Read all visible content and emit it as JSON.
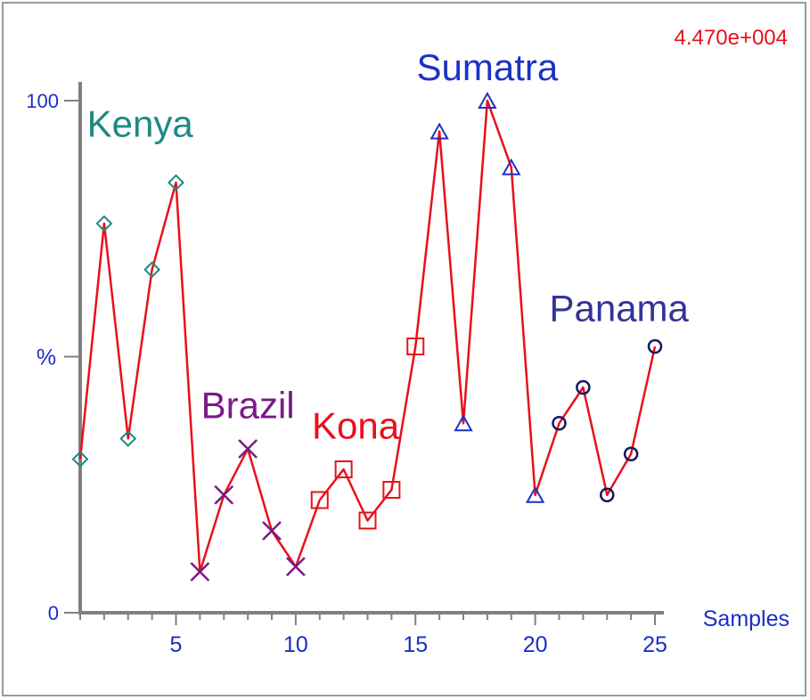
{
  "chart_data": {
    "type": "line",
    "scale_label": "4.470e+004",
    "xlabel": "Samples",
    "ylabel": "%",
    "xlim": [
      1,
      25
    ],
    "ylim": [
      0,
      100
    ],
    "x_ticks": [
      5,
      10,
      15,
      20,
      25
    ],
    "y_ticks": [
      0,
      100
    ],
    "grid": false,
    "line_color": "#e8101c",
    "points": [
      {
        "x": 1,
        "y": 30,
        "group": "Kenya"
      },
      {
        "x": 2,
        "y": 76,
        "group": "Kenya"
      },
      {
        "x": 3,
        "y": 34,
        "group": "Kenya"
      },
      {
        "x": 4,
        "y": 67,
        "group": "Kenya"
      },
      {
        "x": 5,
        "y": 84,
        "group": "Kenya"
      },
      {
        "x": 6,
        "y": 8,
        "group": "Brazil"
      },
      {
        "x": 7,
        "y": 23,
        "group": "Brazil"
      },
      {
        "x": 8,
        "y": 32,
        "group": "Brazil"
      },
      {
        "x": 9,
        "y": 16,
        "group": "Brazil"
      },
      {
        "x": 10,
        "y": 9,
        "group": "Brazil"
      },
      {
        "x": 11,
        "y": 22,
        "group": "Kona"
      },
      {
        "x": 12,
        "y": 28,
        "group": "Kona"
      },
      {
        "x": 13,
        "y": 18,
        "group": "Kona"
      },
      {
        "x": 14,
        "y": 24,
        "group": "Kona"
      },
      {
        "x": 15,
        "y": 52,
        "group": "Kona"
      },
      {
        "x": 16,
        "y": 94,
        "group": "Sumatra"
      },
      {
        "x": 17,
        "y": 37,
        "group": "Sumatra"
      },
      {
        "x": 18,
        "y": 100,
        "group": "Sumatra"
      },
      {
        "x": 19,
        "y": 87,
        "group": "Sumatra"
      },
      {
        "x": 20,
        "y": 23,
        "group": "Sumatra"
      },
      {
        "x": 21,
        "y": 37,
        "group": "Panama"
      },
      {
        "x": 22,
        "y": 44,
        "group": "Panama"
      },
      {
        "x": 23,
        "y": 23,
        "group": "Panama"
      },
      {
        "x": 24,
        "y": 31,
        "group": "Panama"
      },
      {
        "x": 25,
        "y": 52,
        "group": "Panama"
      }
    ],
    "groups": [
      {
        "name": "Kenya",
        "marker": "diamond",
        "color": "#1e8a82"
      },
      {
        "name": "Brazil",
        "marker": "cross",
        "color": "#7a1a86"
      },
      {
        "name": "Kona",
        "marker": "square",
        "color": "#e8101c"
      },
      {
        "name": "Sumatra",
        "marker": "triangle",
        "color": "#1b33c2"
      },
      {
        "name": "Panama",
        "marker": "circle",
        "color": "#16165e"
      }
    ],
    "annotations": [
      {
        "text": "Kenya",
        "near_x": 3.5,
        "near_y": 93,
        "color": "#1e8a82"
      },
      {
        "text": "Brazil",
        "near_x": 8,
        "near_y": 38,
        "color": "#7a1a86"
      },
      {
        "text": "Kona",
        "near_x": 12.5,
        "near_y": 34,
        "color": "#e8101c"
      },
      {
        "text": "Sumatra",
        "near_x": 18,
        "near_y": 104,
        "color": "#1b33c2"
      },
      {
        "text": "Panama",
        "near_x": 23.5,
        "near_y": 57,
        "color": "#333399"
      }
    ],
    "axis_color": "#808080",
    "tick_label_color": "#1a2ec8",
    "scale_label_color": "#e8101c"
  }
}
